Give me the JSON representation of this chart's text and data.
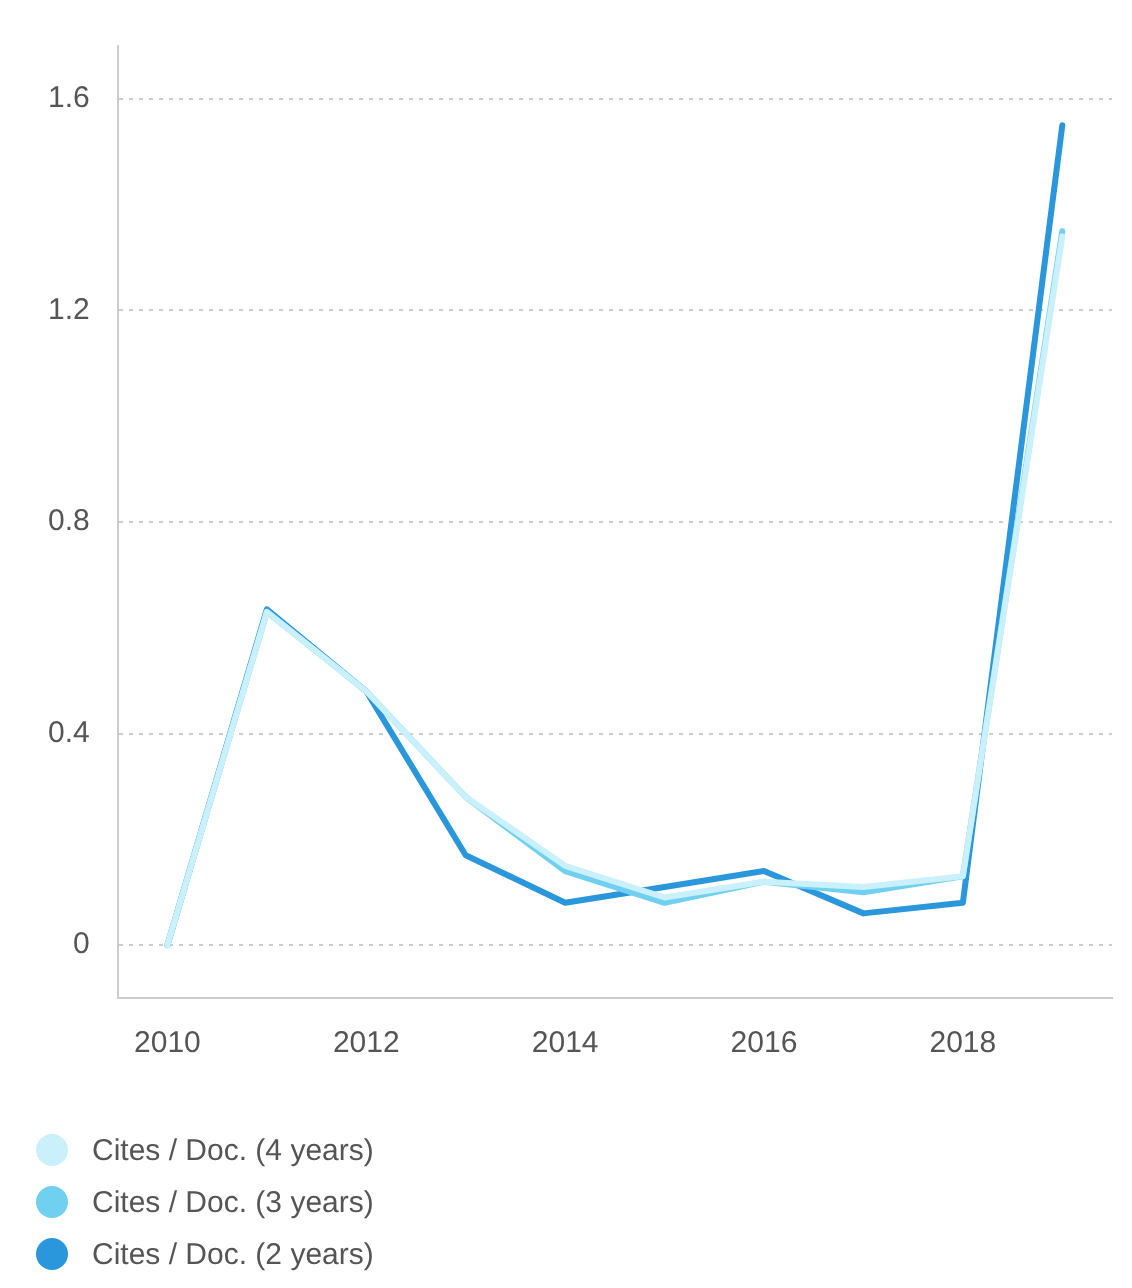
{
  "chart_data": {
    "type": "line",
    "x": [
      2010,
      2011,
      2012,
      2013,
      2014,
      2015,
      2016,
      2017,
      2018,
      2019
    ],
    "series": [
      {
        "name": "Cites / Doc. (4 years)",
        "color": "#c9f0fb",
        "values": [
          0,
          0.63,
          0.48,
          0.28,
          0.15,
          0.09,
          0.12,
          0.11,
          0.13,
          1.34
        ]
      },
      {
        "name": "Cites / Doc. (3 years)",
        "color": "#6fd0f0",
        "values": [
          0,
          0.63,
          0.48,
          0.28,
          0.14,
          0.08,
          0.12,
          0.1,
          0.13,
          1.35
        ]
      },
      {
        "name": "Cites / Doc. (2 years)",
        "color": "#2a96dc",
        "values": [
          0,
          0.635,
          0.48,
          0.17,
          0.08,
          0.11,
          0.14,
          0.06,
          0.08,
          1.55
        ]
      }
    ],
    "xlim": [
      2009.5,
      2019.5
    ],
    "xticks": [
      2010,
      2012,
      2014,
      2016,
      2018
    ],
    "ylim": [
      -0.1,
      1.7
    ],
    "yticks": [
      0,
      0.4,
      0.8,
      1.2,
      1.6
    ],
    "grid": "y",
    "legend": "bottom left",
    "marker": "none",
    "line_style": "solid"
  }
}
